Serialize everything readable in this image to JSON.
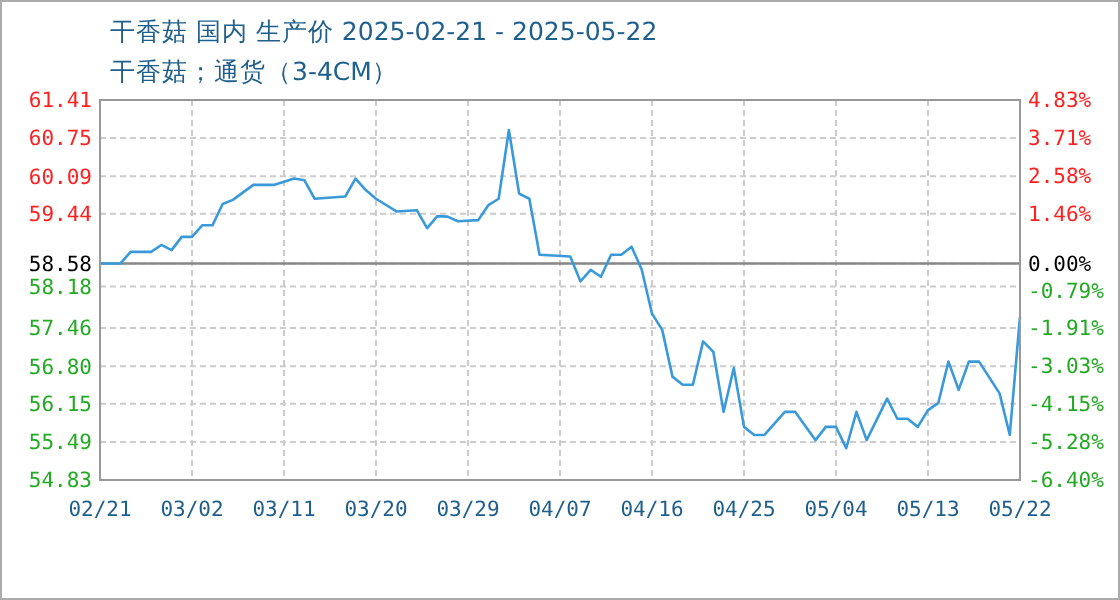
{
  "chart_data": {
    "type": "line",
    "title": "干香菇 国内 生产价 2025-02-21 - 2025-05-22",
    "subtitle": "干香菇；通货（3-4CM）",
    "x": [
      "2025-02-21",
      "2025-02-23",
      "2025-02-24",
      "2025-02-26",
      "2025-02-27",
      "2025-02-28",
      "2025-03-01",
      "2025-03-02",
      "2025-03-03",
      "2025-03-04",
      "2025-03-05",
      "2025-03-06",
      "2025-03-08",
      "2025-03-10",
      "2025-03-12",
      "2025-03-13",
      "2025-03-14",
      "2025-03-17",
      "2025-03-18",
      "2025-03-19",
      "2025-03-20",
      "2025-03-22",
      "2025-03-24",
      "2025-03-25",
      "2025-03-26",
      "2025-03-27",
      "2025-03-28",
      "2025-03-30",
      "2025-03-31",
      "2025-04-01",
      "2025-04-02",
      "2025-04-03",
      "2025-04-04",
      "2025-04-05",
      "2025-04-08",
      "2025-04-09",
      "2025-04-10",
      "2025-04-11",
      "2025-04-12",
      "2025-04-13",
      "2025-04-14",
      "2025-04-15",
      "2025-04-16",
      "2025-04-17",
      "2025-04-18",
      "2025-04-19",
      "2025-04-20",
      "2025-04-21",
      "2025-04-22",
      "2025-04-23",
      "2025-04-24",
      "2025-04-25",
      "2025-04-26",
      "2025-04-27",
      "2025-04-29",
      "2025-04-30",
      "2025-05-02",
      "2025-05-03",
      "2025-05-04",
      "2025-05-05",
      "2025-05-06",
      "2025-05-07",
      "2025-05-09",
      "2025-05-10",
      "2025-05-11",
      "2025-05-12",
      "2025-05-13",
      "2025-05-14",
      "2025-05-15",
      "2025-05-16",
      "2025-05-17",
      "2025-05-18",
      "2025-05-20",
      "2025-05-21",
      "2025-05-22"
    ],
    "series": [
      {
        "color": "#3a9ad9",
        "values": [
          58.58,
          58.58,
          58.78,
          58.78,
          58.9,
          58.81,
          59.04,
          59.04,
          59.24,
          59.24,
          59.61,
          59.68,
          59.94,
          59.94,
          60.05,
          60.02,
          59.7,
          59.74,
          60.05,
          59.85,
          59.7,
          59.48,
          59.5,
          59.19,
          59.4,
          59.39,
          59.31,
          59.33,
          59.59,
          59.7,
          60.89,
          59.79,
          59.7,
          58.73,
          58.7,
          58.27,
          58.47,
          58.35,
          58.73,
          58.73,
          58.87,
          58.47,
          57.71,
          57.43,
          56.62,
          56.48,
          56.48,
          57.23,
          57.05,
          56.01,
          56.77,
          55.75,
          55.61,
          55.61,
          56.01,
          56.01,
          55.52,
          55.75,
          55.75,
          55.38,
          56.01,
          55.52,
          56.24,
          55.89,
          55.89,
          55.75,
          56.04,
          56.16,
          56.88,
          56.39,
          56.88,
          56.88,
          56.33,
          55.61,
          57.66
        ]
      }
    ],
    "xlim": [
      "2025-02-21",
      "2025-05-22"
    ],
    "xticks": [
      {
        "value": "2025-02-21",
        "label": "02/21"
      },
      {
        "value": "2025-03-02",
        "label": "03/02"
      },
      {
        "value": "2025-03-11",
        "label": "03/11"
      },
      {
        "value": "2025-03-20",
        "label": "03/20"
      },
      {
        "value": "2025-03-29",
        "label": "03/29"
      },
      {
        "value": "2025-04-07",
        "label": "04/07"
      },
      {
        "value": "2025-04-16",
        "label": "04/16"
      },
      {
        "value": "2025-04-25",
        "label": "04/25"
      },
      {
        "value": "2025-05-04",
        "label": "05/04"
      },
      {
        "value": "2025-05-13",
        "label": "05/13"
      },
      {
        "value": "2025-05-22",
        "label": "05/22"
      }
    ],
    "ylim": [
      54.83,
      61.41
    ],
    "yticks": [
      61.41,
      60.75,
      60.09,
      59.44,
      58.58,
      58.18,
      57.46,
      {
        "value": 56.8,
        "label": "56.80"
      },
      56.15,
      55.49,
      54.83
    ],
    "y2lim": [
      -6.4,
      4.83
    ],
    "y2ticks": [
      {
        "value": 4.83,
        "label": "4.83%"
      },
      {
        "value": 3.71,
        "label": "3.71%"
      },
      {
        "value": 2.58,
        "label": "2.58%"
      },
      {
        "value": 1.46,
        "label": "1.46%"
      },
      {
        "value": 0,
        "label": "0.00%"
      },
      {
        "value": -0.79,
        "label": "-0.79%"
      },
      {
        "value": -1.91,
        "label": "-1.91%"
      },
      {
        "value": -3.03,
        "label": "-3.03%"
      },
      {
        "value": -4.15,
        "label": "-4.15%"
      },
      {
        "value": -5.28,
        "label": "-5.28%"
      },
      {
        "value": -6.4,
        "label": "-6.40%"
      }
    ],
    "ref_lines": [
      {
        "axis": "y",
        "value": 58.58,
        "color": "#888888"
      }
    ],
    "grid": true,
    "marker": "none",
    "line_style": "solid"
  }
}
